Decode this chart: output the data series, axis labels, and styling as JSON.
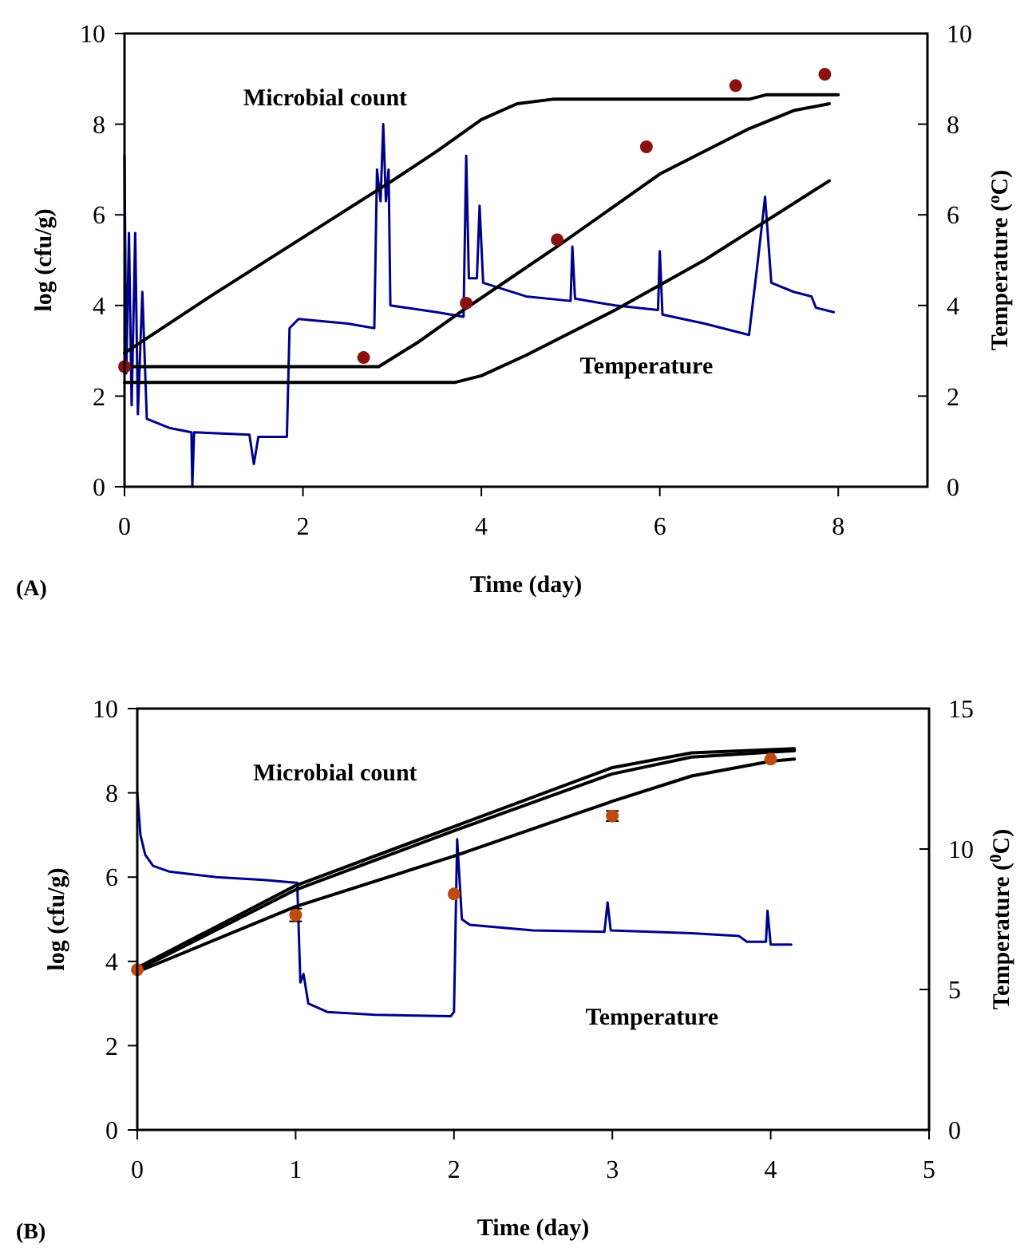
{
  "chart_data": [
    {
      "type": "line",
      "xlabel": "Time (day)",
      "ylabel": "log (cfu/g)",
      "y2label": "Temperature ($^{o}$C)",
      "xlim": [
        0,
        9
      ],
      "xticks": [
        0,
        2,
        4,
        6,
        8
      ],
      "ylim": [
        0,
        10
      ],
      "yticks": [
        0,
        2,
        4,
        6,
        8,
        10
      ],
      "y2lim": [
        0,
        10
      ],
      "y2ticks": [
        0,
        2,
        4,
        6,
        8,
        10
      ],
      "annotations": [
        "Microbial count",
        "Temperature",
        "(A)"
      ],
      "series": [
        {
          "type": "line",
          "axis": "y2",
          "color": "#00008b",
          "marker": "none",
          "x": [
            0,
            0.02,
            0.05,
            0.08,
            0.12,
            0.15,
            0.2,
            0.25,
            0.5,
            0.75,
            0.76,
            0.78,
            1.4,
            1.45,
            1.5,
            1.82,
            1.85,
            1.95,
            2.5,
            2.8,
            2.83,
            2.87,
            2.9,
            2.93,
            2.96,
            2.98,
            3.5,
            3.8,
            3.83,
            3.86,
            3.95,
            3.98,
            4.02,
            4.5,
            5,
            5.02,
            5.05,
            5.5,
            5.98,
            6,
            6.03,
            6.5,
            7,
            7.1,
            7.18,
            7.25,
            7.5,
            7.7,
            7.75,
            7.95
          ],
          "values": [
            7.3,
            2.5,
            5.6,
            1.8,
            5.6,
            1.6,
            4.3,
            1.5,
            1.3,
            1.2,
            0,
            1.2,
            1.15,
            0.5,
            1.1,
            1.1,
            3.5,
            3.7,
            3.6,
            3.5,
            7,
            6.3,
            8,
            6.3,
            7,
            4,
            3.85,
            3.75,
            7.3,
            4.6,
            4.6,
            6.2,
            4.5,
            4.2,
            4.1,
            5.3,
            4.15,
            4,
            3.9,
            5.2,
            3.8,
            3.6,
            3.35,
            5,
            6.4,
            4.5,
            4.3,
            4.2,
            3.95,
            3.85
          ]
        },
        {
          "type": "line",
          "color": "#000000",
          "marker": "none",
          "x": [
            0,
            1,
            2,
            3,
            3.5,
            4,
            4.4,
            4.8,
            7,
            7.2,
            8
          ],
          "values": [
            2.95,
            4.25,
            5.5,
            6.75,
            7.4,
            8.1,
            8.45,
            8.55,
            8.55,
            8.65,
            8.65
          ]
        },
        {
          "type": "line",
          "color": "#000000",
          "marker": "none",
          "x": [
            0,
            2.85,
            3.3,
            3.8,
            4.85,
            6,
            7,
            7.5,
            7.9
          ],
          "values": [
            2.65,
            2.65,
            3.2,
            3.9,
            5.3,
            6.9,
            7.9,
            8.3,
            8.45
          ]
        },
        {
          "type": "line",
          "color": "#000000",
          "marker": "none",
          "x": [
            0,
            3.7,
            4,
            4.5,
            5.5,
            6.5,
            7.9
          ],
          "values": [
            2.3,
            2.3,
            2.45,
            2.9,
            3.9,
            5,
            6.75
          ]
        },
        {
          "type": "scatter",
          "color": "#8b1010",
          "marker": "circle",
          "x": [
            0,
            2.68,
            3.83,
            4.85,
            5.85,
            6.85,
            7.85
          ],
          "values": [
            2.65,
            2.85,
            4.05,
            5.45,
            7.5,
            8.85,
            9.1
          ]
        }
      ]
    },
    {
      "type": "line",
      "xlabel": "Time (day)",
      "ylabel": "log (cfu/g)",
      "y2label": "Temperature ($^{0}$C)",
      "xlim": [
        0,
        5
      ],
      "xticks": [
        0,
        1,
        2,
        3,
        4,
        5
      ],
      "ylim": [
        0,
        10
      ],
      "yticks": [
        0,
        2,
        4,
        6,
        8,
        10
      ],
      "y2lim": [
        0,
        15
      ],
      "y2ticks": [
        0,
        5,
        10,
        15
      ],
      "annotations": [
        "Microbial count",
        "Temperature",
        "(B)"
      ],
      "series": [
        {
          "type": "line",
          "axis": "y2",
          "color": "#00008b",
          "marker": "none",
          "x": [
            0,
            0.02,
            0.05,
            0.1,
            0.2,
            0.5,
            0.8,
            1,
            1.01,
            1.03,
            1.05,
            1.08,
            1.2,
            1.5,
            1.98,
            2,
            2.02,
            2.05,
            2.1,
            2.5,
            2.95,
            2.97,
            2.99,
            3.5,
            3.8,
            3.85,
            3.97,
            3.98,
            4,
            4.13
          ],
          "values": [
            12,
            10.5,
            9.8,
            9.4,
            9.2,
            9,
            8.9,
            8.8,
            8.8,
            5.25,
            5.55,
            4.5,
            4.2,
            4.1,
            4.05,
            4.2,
            10.35,
            7.5,
            7.3,
            7.1,
            7.05,
            8.1,
            7.1,
            7,
            6.9,
            6.7,
            6.7,
            7.8,
            6.6,
            6.6
          ]
        },
        {
          "type": "line",
          "color": "#000000",
          "marker": "none",
          "x": [
            0,
            1,
            2,
            3,
            3.5,
            4.15
          ],
          "values": [
            3.85,
            5.8,
            7.2,
            8.6,
            8.95,
            9.05
          ]
        },
        {
          "type": "line",
          "color": "#000000",
          "marker": "none",
          "x": [
            0,
            1,
            2,
            3,
            3.5,
            4.15
          ],
          "values": [
            3.8,
            5.7,
            7.1,
            8.45,
            8.85,
            9
          ]
        },
        {
          "type": "line",
          "color": "#000000",
          "marker": "none",
          "x": [
            0,
            1,
            2,
            3,
            3.5,
            4,
            4.15
          ],
          "values": [
            3.75,
            5.3,
            6.5,
            7.8,
            8.4,
            8.75,
            8.8
          ]
        },
        {
          "type": "scatter",
          "color": "#c04a10",
          "marker": "circle",
          "x": [
            0,
            1,
            2,
            3,
            4
          ],
          "values": [
            3.8,
            5.1,
            5.6,
            7.45,
            8.8
          ],
          "errors": [
            null,
            0.15,
            null,
            0.12,
            null
          ]
        }
      ]
    }
  ]
}
